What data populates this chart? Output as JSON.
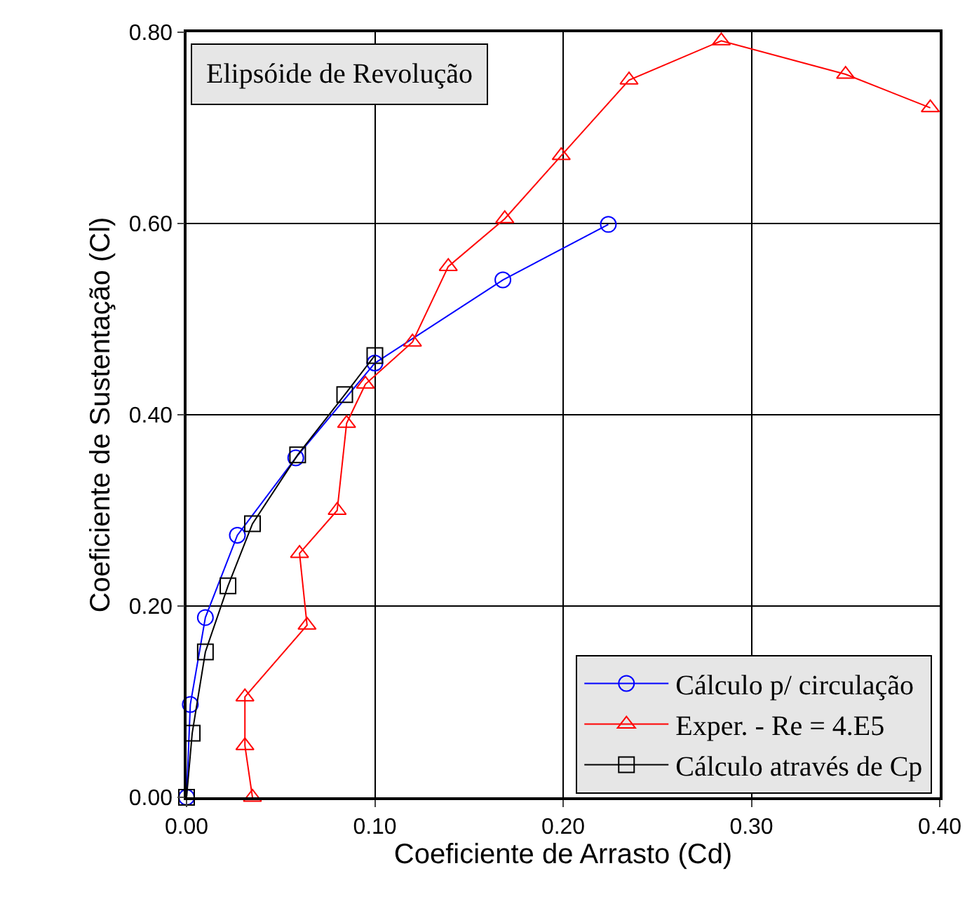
{
  "chart_data": {
    "type": "line",
    "xlabel": "Coeficiente de Arrasto (Cd)",
    "ylabel": "Coeficiente de Sustentação (Cl)",
    "annotations": [
      "Elipsóide de Revolução"
    ],
    "xlim": [
      0,
      0.4
    ],
    "ylim": [
      0,
      0.8
    ],
    "xticks": [
      {
        "value": 0,
        "label": "0.00"
      },
      {
        "value": 0.1,
        "label": "0.10"
      },
      {
        "value": 0.2,
        "label": "0.20"
      },
      {
        "value": 0.3,
        "label": "0.30"
      },
      {
        "value": 0.4,
        "label": "0.40"
      }
    ],
    "yticks": [
      {
        "value": 0,
        "label": "0.00"
      },
      {
        "value": 0.2,
        "label": "0.20"
      },
      {
        "value": 0.4,
        "label": "0.40"
      },
      {
        "value": 0.6,
        "label": "0.60"
      },
      {
        "value": 0.8,
        "label": "0.80"
      }
    ],
    "grid": true,
    "legend": "bottom right",
    "line_style": "solid",
    "series": [
      {
        "name": "Cálculo p/ circulação",
        "color": "#0000ff",
        "marker": "circle",
        "x": [
          0,
          0.002,
          0.01,
          0.027,
          0.058,
          0.1,
          0.168,
          0.224
        ],
        "values": [
          0,
          0.097,
          0.188,
          0.274,
          0.355,
          0.454,
          0.541,
          0.599
        ]
      },
      {
        "name": "Exper. - Re = 4.E5",
        "color": "#ff0000",
        "marker": "triangle",
        "x": [
          0.035,
          0.031,
          0.031,
          0.064,
          0.06,
          0.08,
          0.085,
          0.095,
          0.12,
          0.139,
          0.169,
          0.199,
          0.235,
          0.284,
          0.35,
          0.395
        ],
        "values": [
          0,
          0.054,
          0.105,
          0.18,
          0.255,
          0.3,
          0.391,
          0.432,
          0.476,
          0.555,
          0.605,
          0.671,
          0.75,
          0.791,
          0.756,
          0.721
        ]
      },
      {
        "name": "Cálculo através de Cp",
        "color": "#000000",
        "marker": "square",
        "x": [
          0,
          0.003,
          0.01,
          0.022,
          0.035,
          0.059,
          0.084,
          0.1
        ],
        "values": [
          0,
          0.067,
          0.152,
          0.221,
          0.286,
          0.358,
          0.421,
          0.462
        ]
      }
    ]
  }
}
